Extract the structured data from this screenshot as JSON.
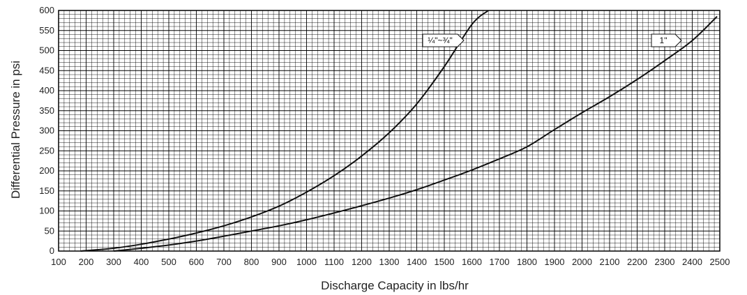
{
  "chart_data": {
    "type": "line",
    "title": "",
    "xlabel": "Discharge Capacity in lbs/hr",
    "ylabel": "Differential Pressure in psi",
    "xlim": [
      100,
      2500
    ],
    "ylim": [
      0,
      600
    ],
    "x_ticks": [
      100,
      200,
      300,
      400,
      500,
      600,
      700,
      800,
      900,
      1000,
      1100,
      1200,
      1300,
      1400,
      1500,
      1600,
      1700,
      1800,
      1900,
      2000,
      2100,
      2200,
      2300,
      2400,
      2500
    ],
    "y_ticks": [
      0,
      50,
      100,
      150,
      200,
      250,
      300,
      350,
      400,
      450,
      500,
      550,
      600
    ],
    "grid": true,
    "series": [
      {
        "name": "¼\"~¾\"",
        "x": [
          180,
          300,
          400,
          500,
          600,
          700,
          800,
          900,
          1000,
          1100,
          1200,
          1300,
          1400,
          1500,
          1600,
          1660
        ],
        "y": [
          0,
          7,
          17,
          30,
          45,
          63,
          85,
          112,
          147,
          188,
          237,
          295,
          367,
          460,
          565,
          600
        ]
      },
      {
        "name": "1\"",
        "x": [
          300,
          400,
          500,
          600,
          700,
          800,
          900,
          1000,
          1100,
          1200,
          1300,
          1400,
          1500,
          1600,
          1700,
          1800,
          1900,
          2000,
          2100,
          2200,
          2300,
          2400,
          2490
        ],
        "y": [
          0,
          7,
          15,
          25,
          37,
          50,
          63,
          78,
          95,
          113,
          132,
          153,
          177,
          202,
          230,
          260,
          303,
          345,
          385,
          428,
          475,
          525,
          585
        ]
      }
    ]
  }
}
